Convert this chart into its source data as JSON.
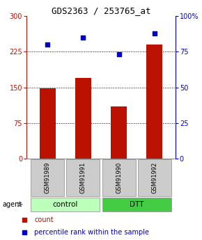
{
  "title": "GDS2363 / 253765_at",
  "samples": [
    "GSM91989",
    "GSM91991",
    "GSM91990",
    "GSM91992"
  ],
  "counts": [
    148,
    170,
    110,
    240
  ],
  "percentiles": [
    80,
    85,
    73,
    88
  ],
  "groups": [
    {
      "label": "control",
      "indices": [
        0,
        1
      ],
      "color": "#bbffbb"
    },
    {
      "label": "DTT",
      "indices": [
        2,
        3
      ],
      "color": "#44cc44"
    }
  ],
  "agent_label": "agent",
  "bar_color": "#bb1100",
  "pct_color": "#0000cc",
  "left_yticks": [
    0,
    75,
    150,
    225,
    300
  ],
  "right_yticks": [
    0,
    25,
    50,
    75,
    100
  ],
  "right_ytick_labels": [
    "0",
    "25",
    "50",
    "75",
    "100%"
  ],
  "ylim_left": [
    0,
    300
  ],
  "ylim_right": [
    0,
    100
  ],
  "grid_lines": [
    75,
    150,
    225
  ],
  "legend_count_label": "count",
  "legend_pct_label": "percentile rank within the sample",
  "background_color": "#ffffff",
  "tick_label_fontsize": 7,
  "title_fontsize": 9,
  "gray_color": "#cccccc",
  "sample_box_border": "#999999"
}
